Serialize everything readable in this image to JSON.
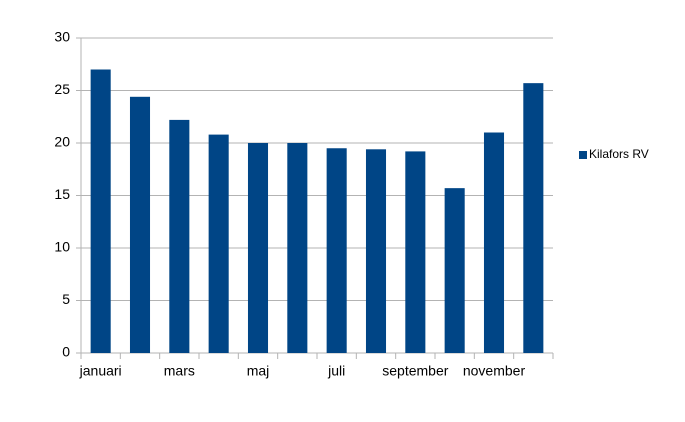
{
  "chart_data": {
    "type": "bar",
    "categories": [
      "januari",
      null,
      "mars",
      null,
      "maj",
      null,
      "juli",
      null,
      "september",
      null,
      "november",
      null
    ],
    "series": [
      {
        "name": "Kilafors RV",
        "color": "#004586",
        "values": [
          27,
          24.4,
          22.2,
          20.8,
          20,
          20,
          19.5,
          19.4,
          19.2,
          15.7,
          21,
          25.7
        ]
      }
    ],
    "ylim": [
      0,
      30
    ],
    "yticks": [
      0,
      5,
      10,
      15,
      20,
      25,
      30
    ],
    "grid": true,
    "legend": "right"
  }
}
